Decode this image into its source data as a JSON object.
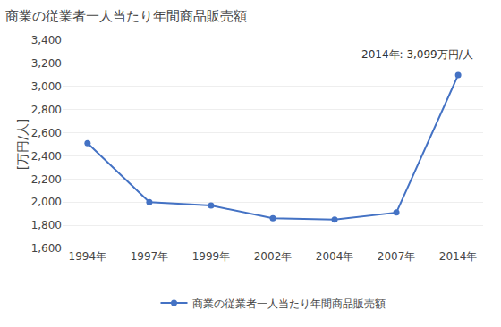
{
  "chart_data": {
    "type": "line",
    "title": "商業の従業者一人当たり年間商品販売額",
    "ylabel": "[万円/人]",
    "annotation": "2014年: 3,099万円/人",
    "categories": [
      "1994年",
      "1997年",
      "1999年",
      "2002年",
      "2004年",
      "2007年",
      "2014年"
    ],
    "series": [
      {
        "name": "商業の従業者一人当たり年間商品販売額",
        "color": "#4472c4",
        "marker": "circle",
        "values": [
          2510,
          2000,
          1970,
          1860,
          1850,
          1910,
          3099
        ]
      }
    ],
    "ylim": [
      1600,
      3400
    ],
    "yticks": [
      {
        "value": 1600,
        "label": "1,600"
      },
      {
        "value": 1800,
        "label": "1,800"
      },
      {
        "value": 2000,
        "label": "2,000"
      },
      {
        "value": 2200,
        "label": "2,200"
      },
      {
        "value": 2400,
        "label": "2,400"
      },
      {
        "value": 2600,
        "label": "2,600"
      },
      {
        "value": 2800,
        "label": "2,800"
      },
      {
        "value": 3000,
        "label": "3,000"
      },
      {
        "value": 3200,
        "label": "3,200"
      },
      {
        "value": 3400,
        "label": "3,400"
      }
    ],
    "grid": true,
    "legend": "bottom"
  }
}
